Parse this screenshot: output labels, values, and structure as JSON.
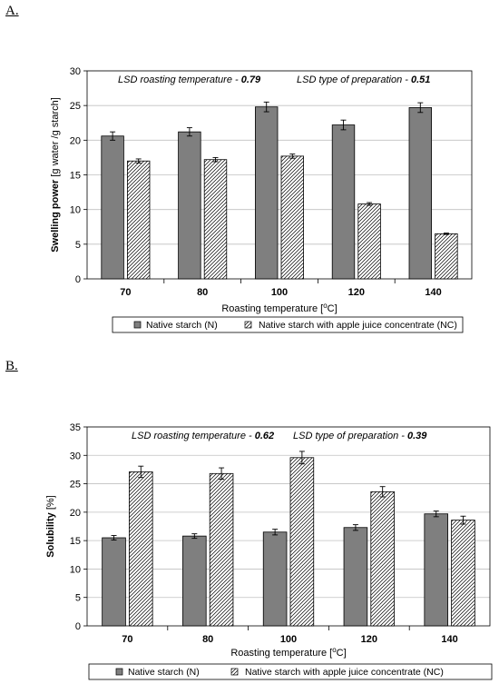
{
  "panels": {
    "a": {
      "label": "A."
    },
    "b": {
      "label": "B."
    }
  },
  "colors": {
    "native_bar": "#7f7f7f",
    "nc_bar_fill": "#ffffff",
    "hatch": "#000000",
    "grid": "#c0c0c0"
  },
  "chart_data": [
    {
      "type": "bar",
      "panel": "A.",
      "categories": [
        "70",
        "80",
        "100",
        "120",
        "140"
      ],
      "series": [
        {
          "name": "Native starch (N)",
          "values": [
            20.6,
            21.2,
            24.8,
            22.2,
            24.7
          ],
          "errors": [
            0.6,
            0.6,
            0.7,
            0.7,
            0.7
          ]
        },
        {
          "name": "Native starch with apple juice concentrate (NC)",
          "values": [
            17.0,
            17.2,
            17.7,
            10.8,
            6.5
          ],
          "errors": [
            0.3,
            0.3,
            0.3,
            0.2,
            0.1
          ]
        }
      ],
      "ylim": [
        0,
        30
      ],
      "yticks": [
        "0",
        "5",
        "10",
        "15",
        "20",
        "25",
        "30"
      ],
      "ylabel_bold": "Swelling power",
      "ylabel_rest": " [g water /g starch]",
      "xlabel_main": "Roasting temperature [",
      "xlabel_sup": "o",
      "xlabel_end": "C]",
      "annotations": [
        {
          "text": "LSD roasting temperature  - ",
          "value": "0.79"
        },
        {
          "text": "LSD type of preparation  - ",
          "value": "0.51"
        }
      ],
      "grid": true,
      "legend_position": "bottom"
    },
    {
      "type": "bar",
      "panel": "B.",
      "categories": [
        "70",
        "80",
        "100",
        "120",
        "140"
      ],
      "series": [
        {
          "name": "Native starch (N)",
          "values": [
            15.5,
            15.8,
            16.5,
            17.3,
            19.7
          ],
          "errors": [
            0.4,
            0.4,
            0.5,
            0.5,
            0.5
          ]
        },
        {
          "name": "Native starch with apple juice concentrate (NC)",
          "values": [
            27.1,
            26.8,
            29.6,
            23.6,
            18.6
          ],
          "errors": [
            1.0,
            1.0,
            1.1,
            0.9,
            0.7
          ]
        }
      ],
      "ylim": [
        0,
        35
      ],
      "yticks": [
        "0",
        "5",
        "10",
        "15",
        "20",
        "25",
        "30",
        "35"
      ],
      "ylabel_bold": "Solubility",
      "ylabel_rest": " [%]",
      "xlabel_main": "Roasting temperature [",
      "xlabel_sup": "o",
      "xlabel_end": "C]",
      "annotations": [
        {
          "text": "LSD roasting temperature  - ",
          "value": "0.62"
        },
        {
          "text": "LSD type of preparation  - ",
          "value": "0.39"
        }
      ],
      "grid": true,
      "legend_position": "bottom"
    }
  ]
}
